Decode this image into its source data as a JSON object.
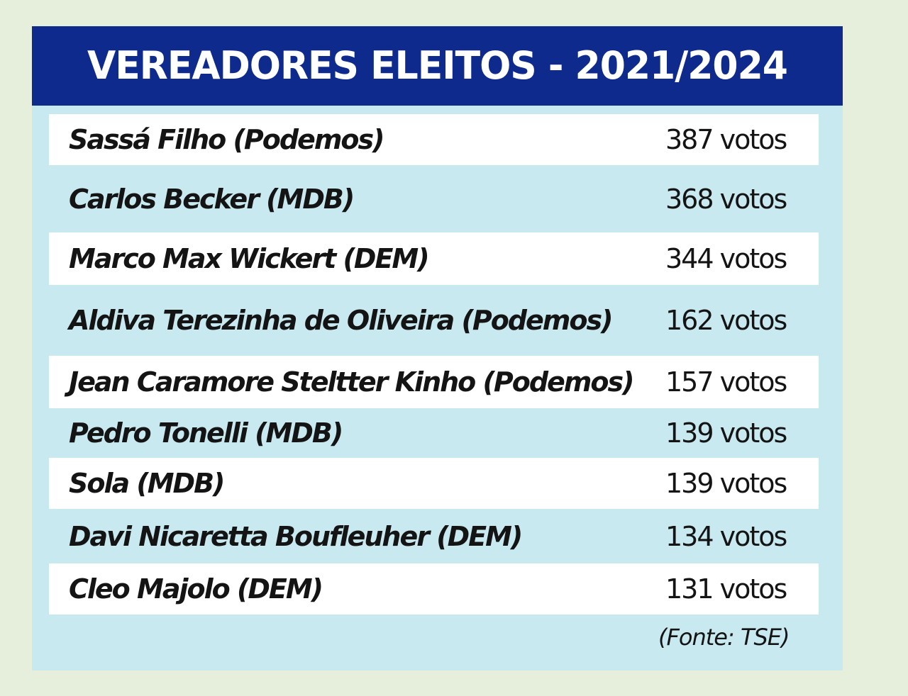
{
  "title": "VEREADORES ELEITOS - 2021/2024",
  "rows": [
    {
      "name": "Sassá Filho (Podemos)",
      "votes": "387 votos"
    },
    {
      "name": "Carlos Becker (MDB)",
      "votes": "368 votos"
    },
    {
      "name": "Marco Max Wickert (DEM)",
      "votes": "344 votos"
    },
    {
      "name": "Aldiva Terezinha de Oliveira (Podemos)",
      "votes": "162 votos"
    },
    {
      "name": "Jean Caramore Steltter Kinho (Podemos)",
      "votes": "157 votos"
    },
    {
      "name": "Pedro Tonelli (MDB)",
      "votes": "139 votos"
    },
    {
      "name": "Sola (MDB)",
      "votes": "139 votos"
    },
    {
      "name": "Davi Nicaretta Boufleuher (DEM)",
      "votes": "134 votos"
    },
    {
      "name": "Cleo Majolo (DEM)",
      "votes": "131 votos"
    }
  ],
  "source": "(Fonte: TSE)",
  "colors": {
    "header_bg": "#0d2a8c",
    "panel_bg": "#c9e9f1",
    "row_white": "#ffffff",
    "page_bg": "#e6efdc"
  }
}
